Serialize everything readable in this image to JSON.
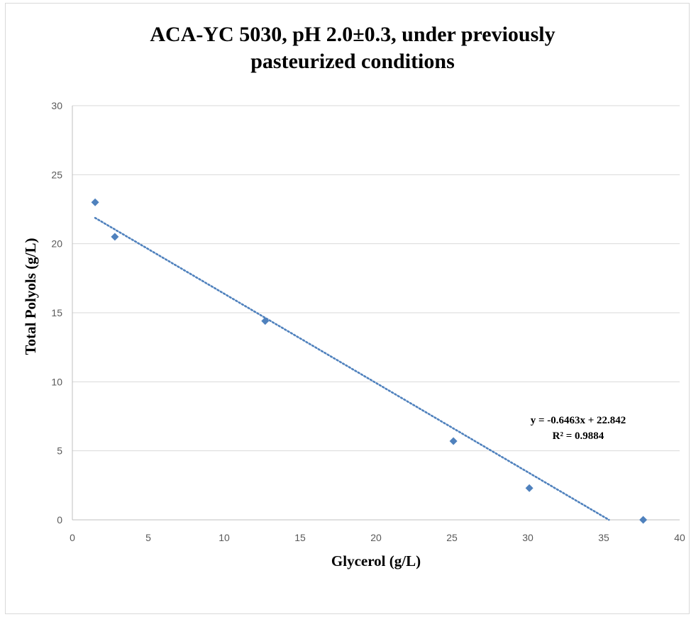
{
  "chart_data": {
    "type": "scatter",
    "title_lines": [
      "ACA-YC 5030, pH 2.0±0.3, under previously",
      "pasteurized conditions"
    ],
    "xlabel": "Glycerol (g/L)",
    "ylabel": "Total Polyols (g/L)",
    "xlim": [
      0,
      40
    ],
    "ylim": [
      0,
      30
    ],
    "xticks": [
      0,
      5,
      10,
      15,
      20,
      25,
      30,
      35,
      40
    ],
    "yticks": [
      0,
      5,
      10,
      15,
      20,
      25,
      30
    ],
    "grid": "horizontal",
    "legend": "none",
    "series": [
      {
        "x": [
          1.5,
          2.8,
          12.7,
          25.1,
          30.1,
          37.6
        ],
        "y": [
          23.0,
          20.5,
          14.4,
          5.7,
          2.3,
          0.0
        ],
        "marker": "diamond",
        "color": "#4f81bd"
      }
    ],
    "trendline": {
      "slope": -0.6463,
      "intercept": 22.842,
      "x_start": 1.5,
      "style": "dotted",
      "color": "#4f81bd",
      "equation": "y = -0.6463x + 22.842",
      "r_squared": "R² = 0.9884"
    },
    "colors": {
      "grid": "#d9d9d9",
      "axis": "#bfbfbf"
    }
  }
}
